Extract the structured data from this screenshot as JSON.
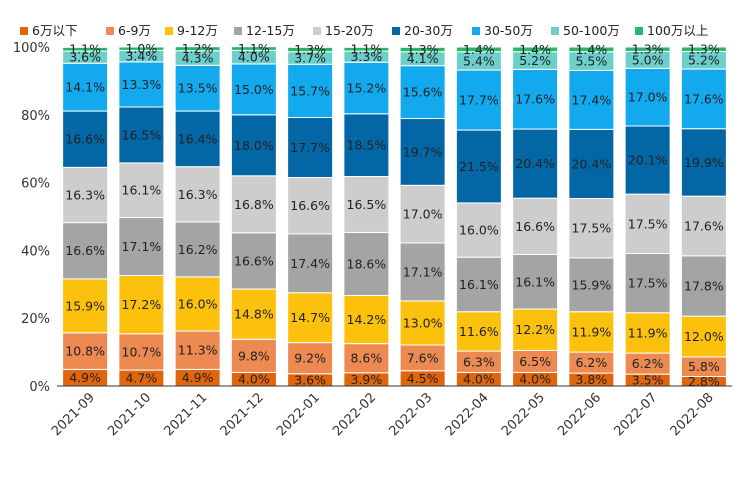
{
  "chart_data": {
    "type": "stacked-bar-100",
    "title": "",
    "xlabel": "",
    "ylabel": "",
    "ylim": [
      0,
      100
    ],
    "yticks": [
      "0%",
      "20%",
      "40%",
      "60%",
      "80%",
      "100%"
    ],
    "grid": false,
    "legend_position": "top",
    "categories": [
      "2021-09",
      "2021-10",
      "2021-11",
      "2021-12",
      "2022-01",
      "2022-02",
      "2022-03",
      "2022-04",
      "2022-05",
      "2022-06",
      "2022-07",
      "2022-08"
    ],
    "series": [
      {
        "name": "6万以下",
        "color": "#e0650b",
        "values": [
          4.9,
          4.7,
          4.9,
          4.0,
          3.6,
          3.9,
          4.5,
          4.0,
          4.0,
          3.8,
          3.5,
          2.8
        ]
      },
      {
        "name": "6-9万",
        "color": "#ec8a51",
        "values": [
          10.8,
          10.7,
          11.3,
          9.8,
          9.2,
          8.6,
          7.6,
          6.3,
          6.5,
          6.2,
          6.2,
          5.8
        ]
      },
      {
        "name": "9-12万",
        "color": "#fcc10c",
        "values": [
          15.9,
          17.2,
          16.0,
          14.8,
          14.7,
          14.2,
          13.0,
          11.6,
          12.2,
          11.9,
          11.9,
          12.0
        ]
      },
      {
        "name": "12-15万",
        "color": "#a4a4a4",
        "values": [
          16.6,
          17.1,
          16.2,
          16.6,
          17.4,
          18.6,
          17.1,
          16.1,
          16.1,
          15.9,
          17.5,
          17.8
        ]
      },
      {
        "name": "15-20万",
        "color": "#cdcdcd",
        "values": [
          16.3,
          16.1,
          16.3,
          16.8,
          16.6,
          16.5,
          17.0,
          16.0,
          16.6,
          17.5,
          17.5,
          17.6
        ]
      },
      {
        "name": "20-30万",
        "color": "#0367a6",
        "values": [
          16.6,
          16.5,
          16.4,
          18.0,
          17.7,
          18.5,
          19.7,
          21.5,
          20.4,
          20.4,
          20.1,
          19.9
        ]
      },
      {
        "name": "30-50万",
        "color": "#13a9ef",
        "values": [
          14.1,
          13.3,
          13.5,
          15.0,
          15.7,
          15.2,
          15.6,
          17.7,
          17.6,
          17.4,
          17.0,
          17.6
        ]
      },
      {
        "name": "50-100万",
        "color": "#6ccfcb",
        "values": [
          3.6,
          3.4,
          4.3,
          4.0,
          3.7,
          3.3,
          4.1,
          5.4,
          5.2,
          5.5,
          5.0,
          5.2
        ]
      },
      {
        "name": "100万以上",
        "color": "#27b769",
        "values": [
          1.1,
          1.0,
          1.2,
          1.1,
          1.3,
          1.1,
          1.3,
          1.4,
          1.4,
          1.4,
          1.3,
          1.3
        ]
      }
    ]
  }
}
